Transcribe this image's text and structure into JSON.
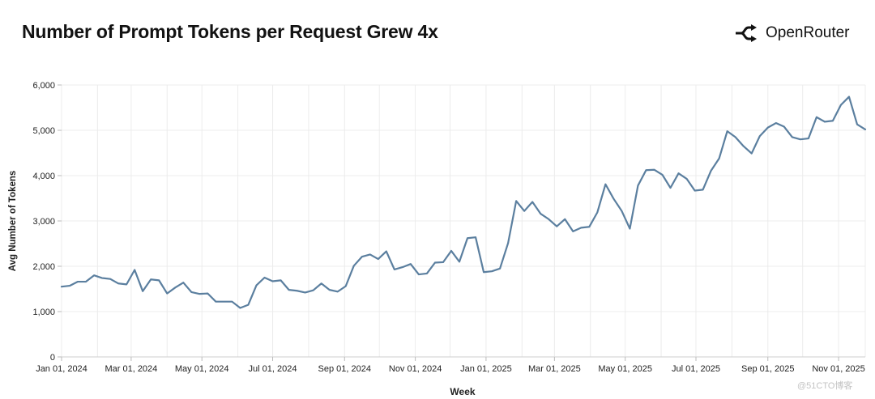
{
  "header": {
    "title": "Number of Prompt Tokens per Request Grew 4x",
    "brand_name": "OpenRouter",
    "brand_icon": "openrouter-logo-icon"
  },
  "watermark": "@51CTO博客",
  "colors": {
    "line": "#5b7f9f",
    "grid": "#ececec",
    "axis_text": "#222222",
    "title": "#121212"
  },
  "chart_data": {
    "type": "line",
    "title": "Number of Prompt Tokens per Request Grew 4x",
    "xlabel": "Week",
    "ylabel": "Avg Number of Tokens",
    "ylim": [
      0,
      6000
    ],
    "yticks": [
      0,
      1000,
      2000,
      3000,
      4000,
      5000,
      6000
    ],
    "ytick_labels": [
      "0",
      "1,000",
      "2,000",
      "3,000",
      "4,000",
      "5,000",
      "6,000"
    ],
    "x_start": "2024-01-01",
    "x_step_days": 7,
    "xtick_labels": [
      {
        "date": "2024-01-01",
        "label": "Jan 01, 2024"
      },
      {
        "date": "2024-03-01",
        "label": "Mar 01, 2024"
      },
      {
        "date": "2024-05-01",
        "label": "May 01, 2024"
      },
      {
        "date": "2024-07-01",
        "label": "Jul 01, 2024"
      },
      {
        "date": "2024-09-01",
        "label": "Sep 01, 2024"
      },
      {
        "date": "2024-11-01",
        "label": "Nov 01, 2024"
      },
      {
        "date": "2025-01-01",
        "label": "Jan 01, 2025"
      },
      {
        "date": "2025-03-01",
        "label": "Mar 01, 2025"
      },
      {
        "date": "2025-05-01",
        "label": "May 01, 2025"
      },
      {
        "date": "2025-07-01",
        "label": "Jul 01, 2025"
      },
      {
        "date": "2025-09-01",
        "label": "Sep 01, 2025"
      },
      {
        "date": "2025-11-01",
        "label": "Nov 01, 2025"
      }
    ],
    "grid": true,
    "series": [
      {
        "name": "Avg Number of Tokens",
        "values": [
          1550,
          1570,
          1660,
          1660,
          1800,
          1740,
          1720,
          1620,
          1600,
          1920,
          1450,
          1710,
          1690,
          1400,
          1530,
          1640,
          1430,
          1390,
          1400,
          1220,
          1220,
          1220,
          1080,
          1150,
          1580,
          1750,
          1670,
          1690,
          1480,
          1460,
          1420,
          1470,
          1620,
          1480,
          1440,
          1560,
          2010,
          2210,
          2260,
          2160,
          2330,
          1930,
          1980,
          2050,
          1820,
          1840,
          2080,
          2090,
          2340,
          2100,
          2620,
          2640,
          1870,
          1890,
          1950,
          2510,
          3440,
          3220,
          3420,
          3160,
          3040,
          2880,
          3040,
          2770,
          2850,
          2870,
          3190,
          3810,
          3490,
          3220,
          2830,
          3780,
          4120,
          4130,
          4020,
          3730,
          4050,
          3930,
          3670,
          3690,
          4110,
          4380,
          4980,
          4850,
          4650,
          4490,
          4870,
          5060,
          5160,
          5080,
          4850,
          4800,
          4820,
          5290,
          5190,
          5210,
          5560,
          5740,
          5130,
          5020
        ]
      }
    ]
  }
}
